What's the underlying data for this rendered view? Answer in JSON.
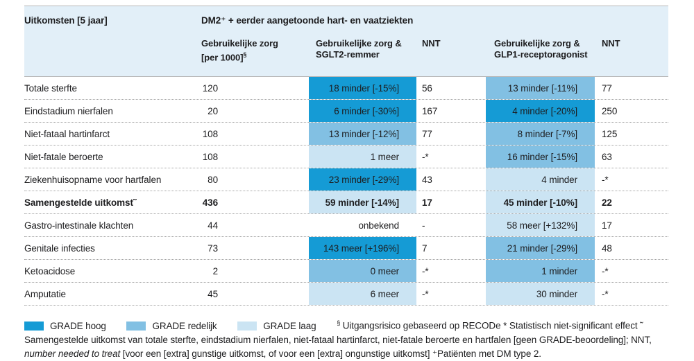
{
  "colors": {
    "hoog": "#159bd5",
    "redelijk": "#82c0e3",
    "laag": "#cbe4f3",
    "header_bg": "#e2eff8"
  },
  "chart_data": {
    "type": "table",
    "title_col": "Uitkomsten [5 jaar]",
    "group_header": "DM2⁺ + eerder aangetoonde hart- en vaatziekten",
    "columns": [
      {
        "line1": "Gebruikelijke zorg",
        "line2": "[per 1000]",
        "sup": "§"
      },
      {
        "line1": "Gebruikelijke zorg &",
        "line2": "SGLT2-remmer"
      },
      {
        "line1": "NNT"
      },
      {
        "line1": "Gebruikelijke zorg &",
        "line2": "GLP1-receptoragonist"
      },
      {
        "line1": "NNT"
      }
    ],
    "rows": [
      {
        "label": "Totale sterfte",
        "per1000": "120",
        "sglt2_text": "18 minder [-15%]",
        "sglt2_grade": "hoog",
        "nnt1": "56",
        "glp1_text": "13 minder [-11%]",
        "glp1_grade": "redelijk",
        "nnt2": "77"
      },
      {
        "label": "Eindstadium nierfalen",
        "per1000": "20",
        "sglt2_text": "6 minder [-30%]",
        "sglt2_grade": "hoog",
        "nnt1": "167",
        "glp1_text": "4 minder [-20%]",
        "glp1_grade": "hoog",
        "nnt2": "250"
      },
      {
        "label": "Niet-fataal hartinfarct",
        "per1000": "108",
        "sglt2_text": "13 minder [-12%]",
        "sglt2_grade": "redelijk",
        "nnt1": "77",
        "glp1_text": "8 minder [-7%]",
        "glp1_grade": "redelijk",
        "nnt2": "125"
      },
      {
        "label": "Niet-fatale beroerte",
        "per1000": "108",
        "sglt2_text": "1 meer",
        "sglt2_grade": "laag",
        "nnt1": "-*",
        "glp1_text": "16 minder [-15%]",
        "glp1_grade": "redelijk",
        "nnt2": "63"
      },
      {
        "label": "Ziekenhuisopname voor hartfalen",
        "per1000": "80",
        "sglt2_text": "23 minder [-29%]",
        "sglt2_grade": "hoog",
        "nnt1": "43",
        "glp1_text": "4 minder",
        "glp1_grade": "laag",
        "nnt2": "-*"
      },
      {
        "label": "Samengestelde uitkomst˜",
        "per1000": "436",
        "sglt2_text": "59 minder [-14%]",
        "sglt2_grade": "laag",
        "nnt1": "17",
        "glp1_text": "45 minder [-10%]",
        "glp1_grade": "laag",
        "nnt2": "22",
        "bold": true
      },
      {
        "label": "Gastro-intestinale klachten",
        "per1000": "44",
        "sglt2_text": "onbekend",
        "sglt2_grade": "none",
        "nnt1": "-",
        "glp1_text": "58 meer [+132%]",
        "glp1_grade": "laag",
        "nnt2": "17"
      },
      {
        "label": "Genitale infecties",
        "per1000": "73",
        "sglt2_text": "143 meer [+196%]",
        "sglt2_grade": "hoog",
        "nnt1": "7",
        "glp1_text": "21 minder [-29%]",
        "glp1_grade": "redelijk",
        "nnt2": "48"
      },
      {
        "label": "Ketoacidose",
        "per1000": "2",
        "sglt2_text": "0 meer",
        "sglt2_grade": "redelijk",
        "nnt1": "-*",
        "glp1_text": "1 minder",
        "glp1_grade": "redelijk",
        "nnt2": "-*"
      },
      {
        "label": "Amputatie",
        "per1000": "45",
        "sglt2_text": "6 meer",
        "sglt2_grade": "laag",
        "nnt1": "-*",
        "glp1_text": "30 minder",
        "glp1_grade": "laag",
        "nnt2": "-*"
      }
    ],
    "legend": [
      {
        "grade": "hoog",
        "label": "GRADE hoog"
      },
      {
        "grade": "redelijk",
        "label": "GRADE redelijk"
      },
      {
        "grade": "laag",
        "label": "GRADE laag"
      }
    ],
    "footnote": {
      "sup1": "§",
      "part1": " Uitgangsrisico gebaseerd op RECODe * Statistisch niet-significant effect ˜ Samengestelde uitkomst van totale sterfte, eindstadium nierfalen, niet-fataal hartinfarct, niet-fatale beroerte en hartfalen [geen GRADE-beoordeling]; NNT, ",
      "italic": "number needed to treat",
      "part2": " [voor een [extra] gunstige uitkomst, of voor een [extra] ongunstige uitkomst] ⁺Patiënten met DM type 2."
    }
  }
}
